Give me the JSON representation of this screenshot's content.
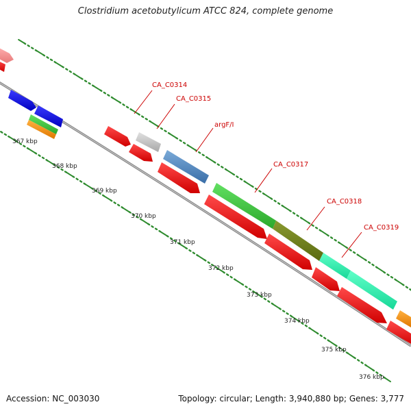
{
  "title": "Clostridium acetobutylicum ATCC 824, complete genome",
  "footer": {
    "accession_label": "Accession: NC_003030",
    "summary": "Topology: circular; Length: 3,940,880 bp; Genes: 3,777"
  },
  "colors": {
    "backbone": "#8a8a8a",
    "tick": "#2e8b2e",
    "gene_label": "#cc0000",
    "kbp_label": "#222222"
  },
  "kbp_ticks": [
    "367 kbp",
    "368 kbp",
    "369 kbp",
    "370 kbp",
    "371 kbp",
    "372 kbp",
    "373 kbp",
    "374 kbp",
    "375 kbp",
    "376 kbp"
  ],
  "gene_labels": [
    "CA_C0314",
    "CA_C0315",
    "argF/I",
    "CA_C0317",
    "CA_C0318",
    "CA_C0319"
  ]
}
